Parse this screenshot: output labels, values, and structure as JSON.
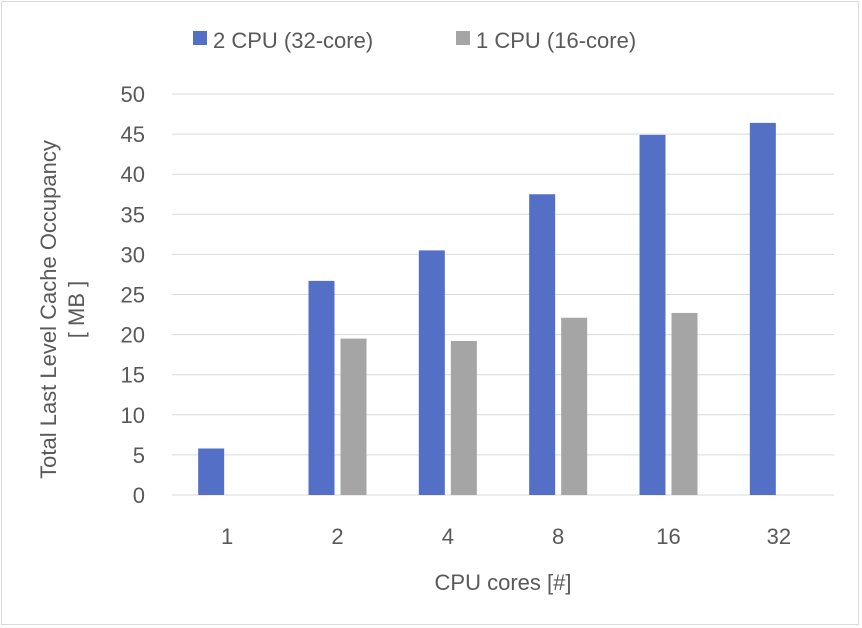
{
  "chart_data": {
    "type": "bar",
    "title": "",
    "xlabel": "CPU cores [#]",
    "ylabel_lines": [
      "Total Last Level Cache Occupancy",
      "[ MB ]"
    ],
    "categories": [
      "1",
      "2",
      "4",
      "8",
      "16",
      "32"
    ],
    "series": [
      {
        "name": "2 CPU (32-core)",
        "color": "#5470c6",
        "values": [
          5.8,
          26.7,
          30.5,
          37.5,
          44.9,
          46.4
        ]
      },
      {
        "name": "1 CPU (16-core)",
        "color": "#a5a5a5",
        "values": [
          null,
          19.5,
          19.2,
          22.1,
          22.7,
          null
        ]
      }
    ],
    "ylim": [
      0,
      50
    ],
    "yticks": [
      0,
      5,
      10,
      15,
      20,
      25,
      30,
      35,
      40,
      45,
      50
    ],
    "grid": true,
    "grid_color": "#d9d9d9",
    "legend_position": "top-center"
  }
}
